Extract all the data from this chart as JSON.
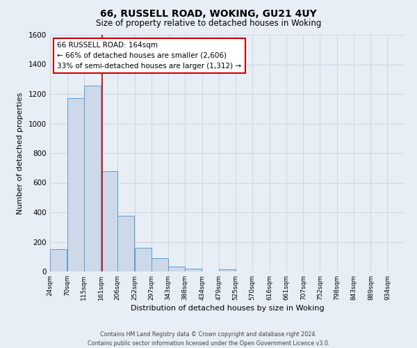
{
  "title": "66, RUSSELL ROAD, WOKING, GU21 4UY",
  "subtitle": "Size of property relative to detached houses in Woking",
  "xlabel": "Distribution of detached houses by size in Woking",
  "ylabel": "Number of detached properties",
  "bar_left_edges": [
    24,
    70,
    115,
    161,
    206,
    252,
    297,
    343,
    388,
    434,
    479,
    525,
    570,
    616,
    661,
    707,
    752,
    798,
    843,
    889
  ],
  "bar_heights": [
    150,
    1170,
    1255,
    680,
    375,
    160,
    90,
    35,
    20,
    0,
    15,
    0,
    0,
    0,
    0,
    0,
    0,
    0,
    0,
    0
  ],
  "bin_width": 45,
  "bar_color": "#cdd9e8",
  "bar_edge_color": "#5b9bd5",
  "property_line_x": 164,
  "property_line_color": "#cc0000",
  "annotation_line1": "66 RUSSELL ROAD: 164sqm",
  "annotation_line2": "← 66% of detached houses are smaller (2,606)",
  "annotation_line3": "33% of semi-detached houses are larger (1,312) →",
  "annotation_box_color": "#ffffff",
  "annotation_box_edge": "#cc0000",
  "ylim": [
    0,
    1600
  ],
  "yticks": [
    0,
    200,
    400,
    600,
    800,
    1000,
    1200,
    1400,
    1600
  ],
  "xtick_labels": [
    "24sqm",
    "70sqm",
    "115sqm",
    "161sqm",
    "206sqm",
    "252sqm",
    "297sqm",
    "343sqm",
    "388sqm",
    "434sqm",
    "479sqm",
    "525sqm",
    "570sqm",
    "616sqm",
    "661sqm",
    "707sqm",
    "752sqm",
    "798sqm",
    "843sqm",
    "889sqm",
    "934sqm"
  ],
  "xtick_positions": [
    24,
    70,
    115,
    161,
    206,
    252,
    297,
    343,
    388,
    434,
    479,
    525,
    570,
    616,
    661,
    707,
    752,
    798,
    843,
    889,
    934
  ],
  "grid_color": "#ccd5e3",
  "background_color": "#e8eef5",
  "plot_background": "#e8eef5",
  "footer_line1": "Contains HM Land Registry data © Crown copyright and database right 2024.",
  "footer_line2": "Contains public sector information licensed under the Open Government Licence v3.0."
}
